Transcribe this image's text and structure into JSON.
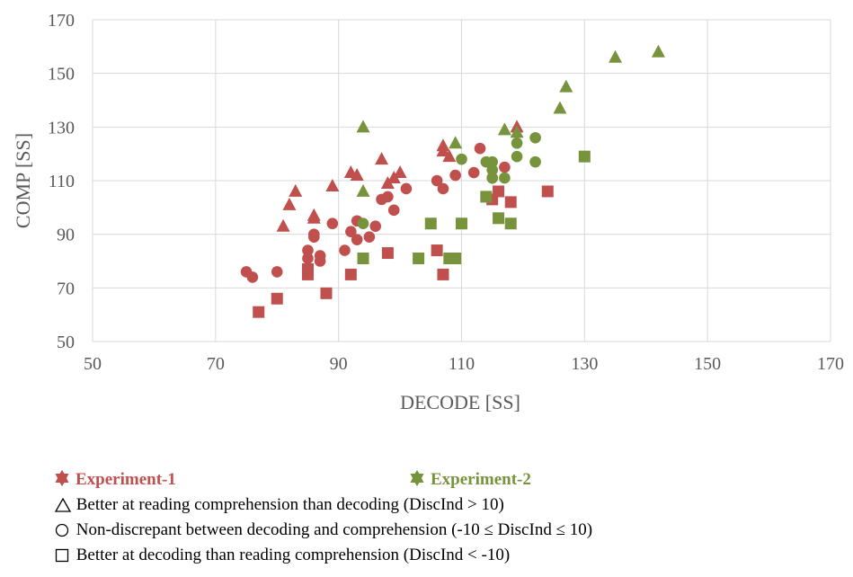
{
  "chart_data": {
    "type": "scatter",
    "xlabel": "DECODE [SS]",
    "ylabel": "COMP [SS]",
    "xlim": [
      50,
      170
    ],
    "ylim": [
      50,
      170
    ],
    "xticks": [
      "50",
      "70",
      "90",
      "110",
      "130",
      "150",
      "170"
    ],
    "yticks": [
      "50",
      "70",
      "90",
      "110",
      "130",
      "150",
      "170"
    ],
    "grid": "vertical-and-horizontal",
    "colors": {
      "experiment_1": "#c0504d",
      "experiment_2": "#77933c"
    },
    "series": [
      {
        "name": "Experiment-1",
        "marker": "triangle",
        "color": "#c0504d",
        "points": [
          [
            81,
            93
          ],
          [
            82,
            101
          ],
          [
            83,
            106
          ],
          [
            86,
            96
          ],
          [
            86,
            97
          ],
          [
            89,
            108
          ],
          [
            92,
            113
          ],
          [
            93,
            112
          ],
          [
            97,
            118
          ],
          [
            98,
            109
          ],
          [
            99,
            111
          ],
          [
            100,
            113
          ],
          [
            107,
            123
          ],
          [
            107,
            121
          ],
          [
            108,
            119
          ],
          [
            119,
            130
          ]
        ]
      },
      {
        "name": "Experiment-1",
        "marker": "circle",
        "color": "#c0504d",
        "points": [
          [
            75,
            76
          ],
          [
            76,
            74
          ],
          [
            80,
            76
          ],
          [
            85,
            84
          ],
          [
            85,
            81
          ],
          [
            86,
            90
          ],
          [
            86,
            89
          ],
          [
            87,
            82
          ],
          [
            87,
            80
          ],
          [
            89,
            94
          ],
          [
            91,
            84
          ],
          [
            92,
            91
          ],
          [
            93,
            95
          ],
          [
            93,
            88
          ],
          [
            95,
            89
          ],
          [
            96,
            93
          ],
          [
            97,
            103
          ],
          [
            98,
            104
          ],
          [
            99,
            99
          ],
          [
            101,
            107
          ],
          [
            106,
            110
          ],
          [
            107,
            107
          ],
          [
            109,
            112
          ],
          [
            112,
            113
          ],
          [
            113,
            122
          ],
          [
            115,
            111
          ],
          [
            117,
            115
          ]
        ]
      },
      {
        "name": "Experiment-1",
        "marker": "square",
        "color": "#c0504d",
        "points": [
          [
            77,
            61
          ],
          [
            80,
            66
          ],
          [
            85,
            75
          ],
          [
            85,
            77
          ],
          [
            88,
            68
          ],
          [
            92,
            75
          ],
          [
            98,
            83
          ],
          [
            106,
            84
          ],
          [
            107,
            75
          ],
          [
            115,
            103
          ],
          [
            116,
            106
          ],
          [
            118,
            102
          ],
          [
            124,
            106
          ]
        ]
      },
      {
        "name": "Experiment-2",
        "marker": "triangle",
        "color": "#77933c",
        "points": [
          [
            94,
            130
          ],
          [
            94,
            106
          ],
          [
            109,
            124
          ],
          [
            117,
            129
          ],
          [
            119,
            128
          ],
          [
            126,
            137
          ],
          [
            127,
            145
          ],
          [
            135,
            156
          ],
          [
            142,
            158
          ]
        ]
      },
      {
        "name": "Experiment-2",
        "marker": "circle",
        "color": "#77933c",
        "points": [
          [
            94,
            94
          ],
          [
            110,
            118
          ],
          [
            114,
            117
          ],
          [
            115,
            117
          ],
          [
            115,
            114
          ],
          [
            115,
            111
          ],
          [
            117,
            111
          ],
          [
            119,
            124
          ],
          [
            119,
            119
          ],
          [
            122,
            126
          ],
          [
            122,
            117
          ]
        ]
      },
      {
        "name": "Experiment-2",
        "marker": "square",
        "color": "#77933c",
        "points": [
          [
            94,
            81
          ],
          [
            103,
            81
          ],
          [
            105,
            94
          ],
          [
            108,
            81
          ],
          [
            109,
            81
          ],
          [
            110,
            94
          ],
          [
            114,
            104
          ],
          [
            116,
            96
          ],
          [
            118,
            94
          ],
          [
            130,
            119
          ]
        ]
      }
    ]
  },
  "legend": {
    "experiment_1": "Experiment-1",
    "experiment_2": "Experiment-2",
    "triangle_text": "Better at reading comprehension than decoding (DiscInd > 10)",
    "circle_text": "Non-discrepant between decoding and comprehension (-10 ≤ DiscInd ≤ 10)",
    "square_text": "Better at decoding than reading comprehension  (DiscInd < -10)"
  }
}
